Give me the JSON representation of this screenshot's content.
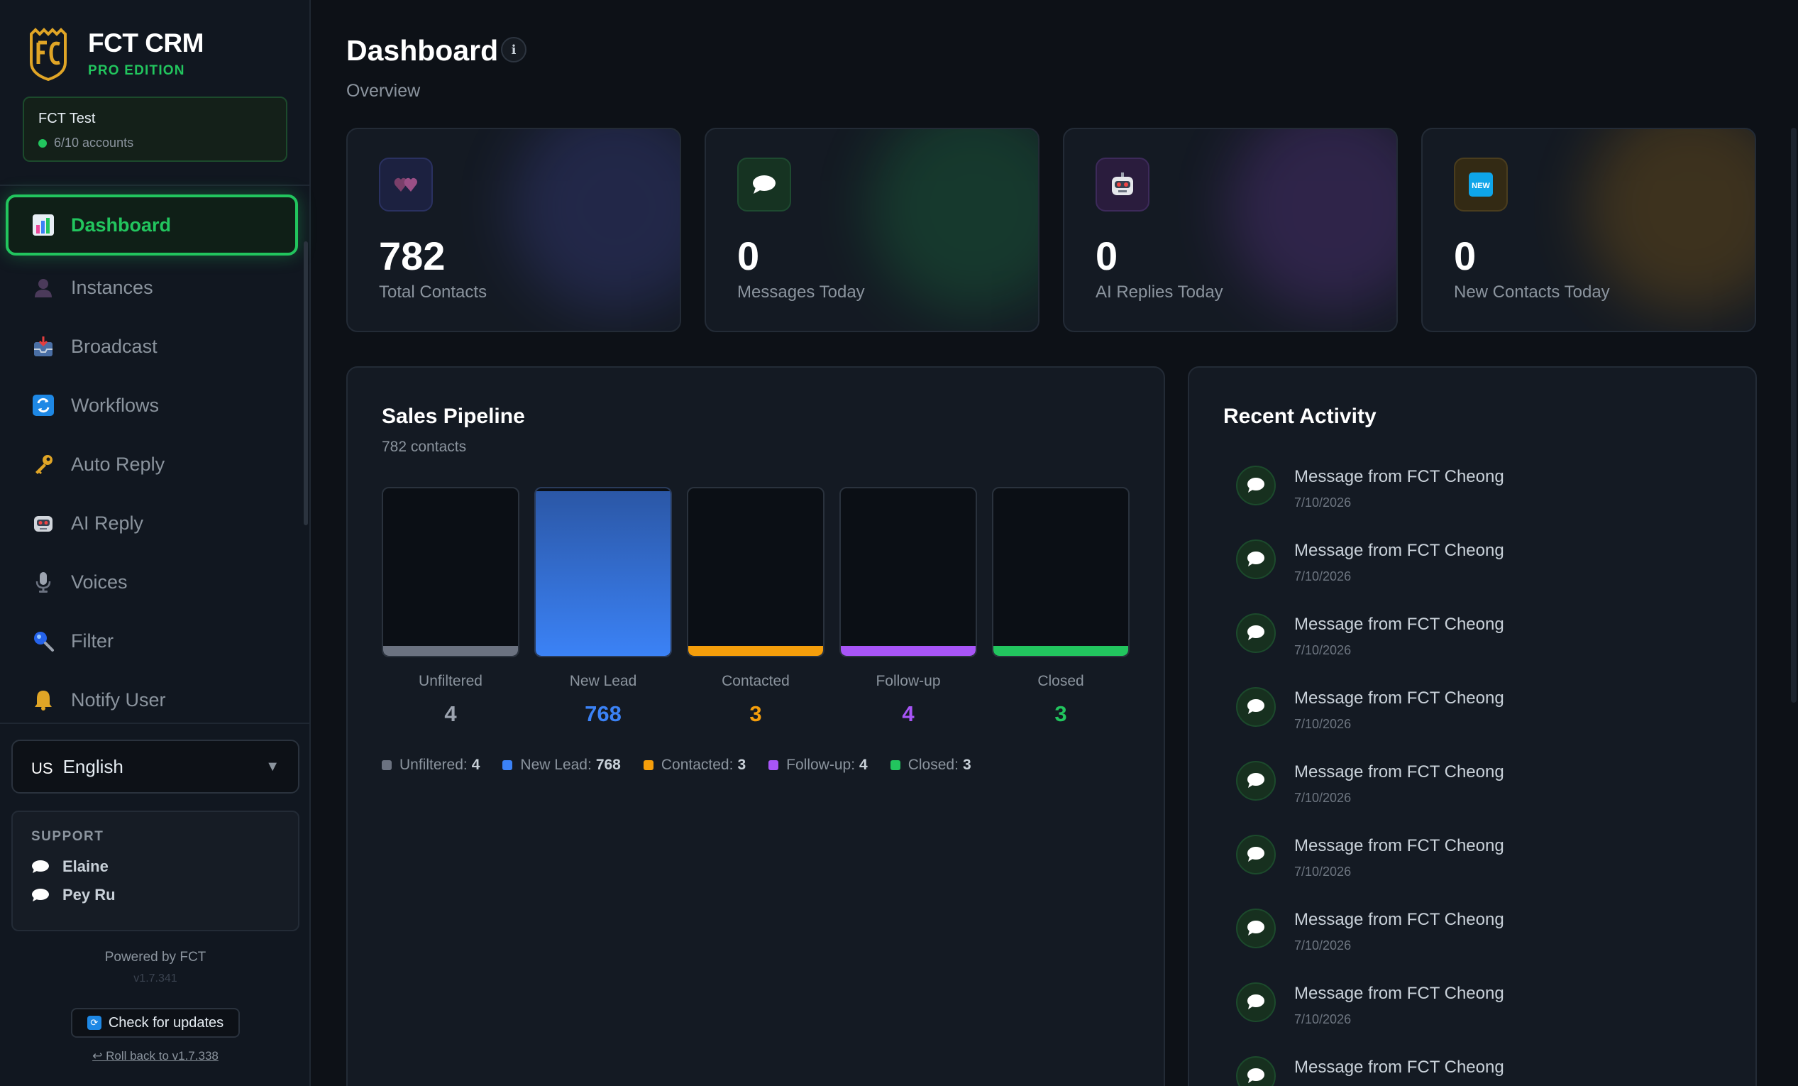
{
  "brand": {
    "title": "FCT CRM",
    "edition": "PRO EDITION"
  },
  "account": {
    "name": "FCT Test",
    "count": "6/10 accounts"
  },
  "nav": [
    {
      "label": "Dashboard",
      "icon": "bar-chart-icon",
      "active": true
    },
    {
      "label": "Instances",
      "icon": "user-silhouette-icon"
    },
    {
      "label": "Broadcast",
      "icon": "inbox-tray-icon"
    },
    {
      "label": "Workflows",
      "icon": "repeat-icon"
    },
    {
      "label": "Auto Reply",
      "icon": "key-icon"
    },
    {
      "label": "AI Reply",
      "icon": "robot-icon"
    },
    {
      "label": "Voices",
      "icon": "microphone-icon"
    },
    {
      "label": "Filter",
      "icon": "magnifier-icon"
    },
    {
      "label": "Notify User",
      "icon": "bell-icon"
    }
  ],
  "language": {
    "code": "US",
    "label": "English"
  },
  "support": {
    "title": "SUPPORT",
    "contacts": [
      "Elaine",
      "Pey Ru"
    ]
  },
  "footer": {
    "powered": "Powered by FCT",
    "version": "v1.7.341",
    "update_label": "Check for updates",
    "rollback_label": "↩ Roll back to v1.7.338"
  },
  "header": {
    "title": "Dashboard",
    "info": "i",
    "subtitle": "Overview"
  },
  "stats": [
    {
      "value": "782",
      "label": "Total Contacts",
      "icon": "two-hearts-icon",
      "color": "#6366f1"
    },
    {
      "value": "0",
      "label": "Messages Today",
      "icon": "speech-bubble-icon",
      "color": "#22c55e"
    },
    {
      "value": "0",
      "label": "AI Replies Today",
      "icon": "robot-icon",
      "color": "#a855f7"
    },
    {
      "value": "0",
      "label": "New Contacts Today",
      "icon": "new-badge-icon",
      "color": "#f59e0b"
    }
  ],
  "pipeline": {
    "title": "Sales Pipeline",
    "subtitle": "782 contacts",
    "stages": [
      {
        "name": "Unfiltered",
        "count": "4",
        "color": "#6b7280"
      },
      {
        "name": "New Lead",
        "count": "768",
        "color": "#3b82f6"
      },
      {
        "name": "Contacted",
        "count": "3",
        "color": "#f59e0b"
      },
      {
        "name": "Follow-up",
        "count": "4",
        "color": "#a855f7"
      },
      {
        "name": "Closed",
        "count": "3",
        "color": "#22c55e"
      }
    ]
  },
  "activity": {
    "title": "Recent Activity",
    "items": [
      {
        "title": "Message from FCT Cheong",
        "date": "7/10/2026"
      },
      {
        "title": "Message from FCT Cheong",
        "date": "7/10/2026"
      },
      {
        "title": "Message from FCT Cheong",
        "date": "7/10/2026"
      },
      {
        "title": "Message from FCT Cheong",
        "date": "7/10/2026"
      },
      {
        "title": "Message from FCT Cheong",
        "date": "7/10/2026"
      },
      {
        "title": "Message from FCT Cheong",
        "date": "7/10/2026"
      },
      {
        "title": "Message from FCT Cheong",
        "date": "7/10/2026"
      },
      {
        "title": "Message from FCT Cheong",
        "date": "7/10/2026"
      },
      {
        "title": "Message from FCT Cheong",
        "date": ""
      }
    ]
  }
}
